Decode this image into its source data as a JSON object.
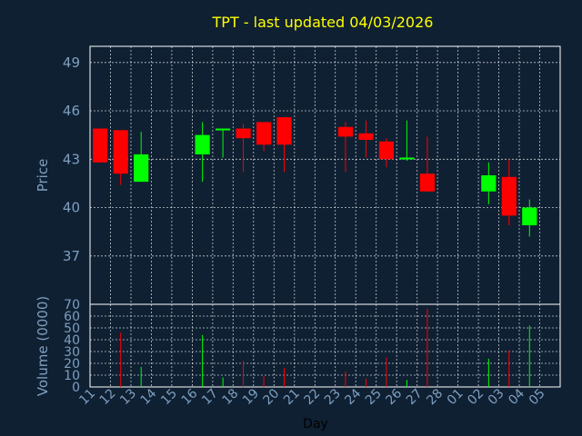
{
  "chart_data": [
    {
      "type": "candlestick",
      "title": "TPT - last updated 04/03/2026",
      "ylabel": "Price",
      "ylim": [
        34,
        50
      ],
      "yticks": [
        37,
        40,
        43,
        46,
        49
      ],
      "grid": true,
      "colors": {
        "up": "#00ff00",
        "down": "#ff0000",
        "background": "#0f2033",
        "title": "#ffff00",
        "axis_text": "#7f9fbf",
        "grid": "#ffffff"
      },
      "x": [
        "11",
        "12",
        "13",
        "14",
        "15",
        "16",
        "17",
        "18",
        "19",
        "20",
        "21",
        "22",
        "23",
        "24",
        "25",
        "26",
        "27",
        "28",
        "01",
        "02",
        "03",
        "04",
        "05"
      ],
      "candles": [
        {
          "x": "11",
          "open": 44.9,
          "high": 44.9,
          "low": 42.8,
          "close": 42.8
        },
        {
          "x": "12",
          "open": 44.8,
          "high": 44.8,
          "low": 41.4,
          "close": 42.1
        },
        {
          "x": "13",
          "open": 41.6,
          "high": 44.7,
          "low": 41.6,
          "close": 43.3
        },
        {
          "x": "16",
          "open": 43.3,
          "high": 45.3,
          "low": 41.6,
          "close": 44.5
        },
        {
          "x": "17",
          "open": 44.8,
          "high": 44.9,
          "low": 43.1,
          "close": 44.9
        },
        {
          "x": "18",
          "open": 44.9,
          "high": 45.2,
          "low": 42.2,
          "close": 44.3
        },
        {
          "x": "19",
          "open": 45.3,
          "high": 45.3,
          "low": 43.5,
          "close": 43.9
        },
        {
          "x": "20",
          "open": 45.6,
          "high": 45.6,
          "low": 42.2,
          "close": 43.9
        },
        {
          "x": "23",
          "open": 45.0,
          "high": 45.3,
          "low": 42.2,
          "close": 44.4
        },
        {
          "x": "24",
          "open": 44.6,
          "high": 45.4,
          "low": 43.1,
          "close": 44.2
        },
        {
          "x": "25",
          "open": 44.1,
          "high": 44.3,
          "low": 42.5,
          "close": 43.0
        },
        {
          "x": "26",
          "open": 43.0,
          "high": 45.4,
          "low": 42.9,
          "close": 43.1
        },
        {
          "x": "27",
          "open": 42.1,
          "high": 44.4,
          "low": 41.0,
          "close": 41.0
        },
        {
          "x": "02",
          "open": 41.0,
          "high": 42.8,
          "low": 40.2,
          "close": 42.0
        },
        {
          "x": "03",
          "open": 41.9,
          "high": 43.0,
          "low": 38.9,
          "close": 39.5
        },
        {
          "x": "04",
          "open": 38.9,
          "high": 40.5,
          "low": 38.2,
          "close": 40.0
        }
      ]
    },
    {
      "type": "bar",
      "ylabel": "Volume (0000)",
      "xlabel": "Day",
      "ylim": [
        0,
        70
      ],
      "yticks": [
        0,
        10,
        20,
        30,
        40,
        50,
        60,
        70
      ],
      "grid": true,
      "categories": [
        "11",
        "12",
        "13",
        "14",
        "15",
        "16",
        "17",
        "18",
        "19",
        "20",
        "21",
        "22",
        "23",
        "24",
        "25",
        "26",
        "27",
        "28",
        "01",
        "02",
        "03",
        "04",
        "05"
      ],
      "bars": [
        {
          "x": "12",
          "value": 46,
          "color": "#ff0000"
        },
        {
          "x": "13",
          "value": 17,
          "color": "#00ff00"
        },
        {
          "x": "16",
          "value": 44,
          "color": "#00ff00"
        },
        {
          "x": "17",
          "value": 8,
          "color": "#00ff00"
        },
        {
          "x": "18",
          "value": 22,
          "color": "#ff0000"
        },
        {
          "x": "19",
          "value": 9,
          "color": "#ff0000"
        },
        {
          "x": "20",
          "value": 16,
          "color": "#ff0000"
        },
        {
          "x": "23",
          "value": 13,
          "color": "#ff0000"
        },
        {
          "x": "24",
          "value": 7,
          "color": "#ff0000"
        },
        {
          "x": "25",
          "value": 25,
          "color": "#ff0000"
        },
        {
          "x": "26",
          "value": 6,
          "color": "#00ff00"
        },
        {
          "x": "27",
          "value": 66,
          "color": "#ff0000"
        },
        {
          "x": "02",
          "value": 24,
          "color": "#00ff00"
        },
        {
          "x": "03",
          "value": 31,
          "color": "#ff0000"
        },
        {
          "x": "04",
          "value": 52,
          "color": "#00ff00"
        }
      ]
    }
  ]
}
